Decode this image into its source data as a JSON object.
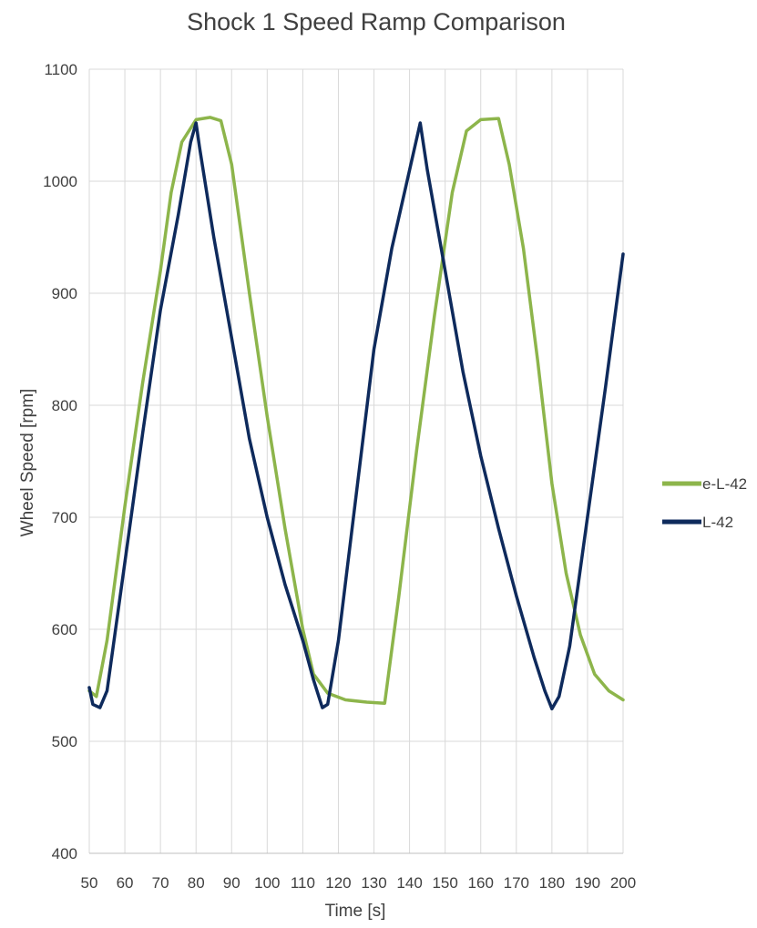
{
  "chart_data": {
    "type": "line",
    "title": "Shock 1 Speed Ramp Comparison",
    "xlabel": "Time [s]",
    "ylabel": "Wheel Speed [rpm]",
    "xlim": [
      50,
      200
    ],
    "ylim": [
      400,
      1100
    ],
    "x_ticks": [
      50,
      60,
      70,
      80,
      90,
      100,
      110,
      120,
      130,
      140,
      150,
      160,
      170,
      180,
      190,
      200
    ],
    "y_ticks": [
      400,
      500,
      600,
      700,
      800,
      900,
      1000,
      1100
    ],
    "grid": true,
    "legend_position": "right",
    "series": [
      {
        "name": "e-L-42",
        "color": "#8db54b",
        "points": [
          [
            50,
            545
          ],
          [
            52,
            540
          ],
          [
            55,
            590
          ],
          [
            60,
            710
          ],
          [
            65,
            820
          ],
          [
            70,
            920
          ],
          [
            73,
            990
          ],
          [
            76,
            1035
          ],
          [
            80,
            1055
          ],
          [
            84,
            1057
          ],
          [
            87,
            1054
          ],
          [
            90,
            1015
          ],
          [
            95,
            900
          ],
          [
            100,
            790
          ],
          [
            105,
            690
          ],
          [
            110,
            600
          ],
          [
            113,
            560
          ],
          [
            117,
            543
          ],
          [
            122,
            537
          ],
          [
            128,
            535
          ],
          [
            133,
            534
          ],
          [
            137,
            630
          ],
          [
            142,
            760
          ],
          [
            147,
            880
          ],
          [
            152,
            990
          ],
          [
            156,
            1045
          ],
          [
            160,
            1055
          ],
          [
            165,
            1056
          ],
          [
            168,
            1015
          ],
          [
            172,
            940
          ],
          [
            176,
            840
          ],
          [
            180,
            730
          ],
          [
            184,
            650
          ],
          [
            188,
            595
          ],
          [
            192,
            560
          ],
          [
            196,
            545
          ],
          [
            200,
            537
          ]
        ]
      },
      {
        "name": "L-42",
        "color": "#0e2a5c",
        "points": [
          [
            49.5,
            548
          ],
          [
            51,
            533
          ],
          [
            53,
            530
          ],
          [
            55,
            545
          ],
          [
            60,
            660
          ],
          [
            65,
            775
          ],
          [
            70,
            885
          ],
          [
            75,
            970
          ],
          [
            78.5,
            1035
          ],
          [
            80,
            1052
          ],
          [
            81,
            1030
          ],
          [
            85,
            950
          ],
          [
            90,
            860
          ],
          [
            95,
            770
          ],
          [
            100,
            700
          ],
          [
            105,
            640
          ],
          [
            110,
            590
          ],
          [
            113,
            555
          ],
          [
            115.5,
            530
          ],
          [
            117,
            533
          ],
          [
            120,
            590
          ],
          [
            125,
            720
          ],
          [
            130,
            850
          ],
          [
            135,
            940
          ],
          [
            140,
            1010
          ],
          [
            143,
            1052
          ],
          [
            145,
            1010
          ],
          [
            150,
            920
          ],
          [
            155,
            830
          ],
          [
            160,
            755
          ],
          [
            165,
            690
          ],
          [
            170,
            630
          ],
          [
            175,
            575
          ],
          [
            178,
            545
          ],
          [
            180,
            529
          ],
          [
            182,
            540
          ],
          [
            185,
            585
          ],
          [
            190,
            700
          ],
          [
            195,
            815
          ],
          [
            200,
            935
          ]
        ]
      }
    ]
  }
}
